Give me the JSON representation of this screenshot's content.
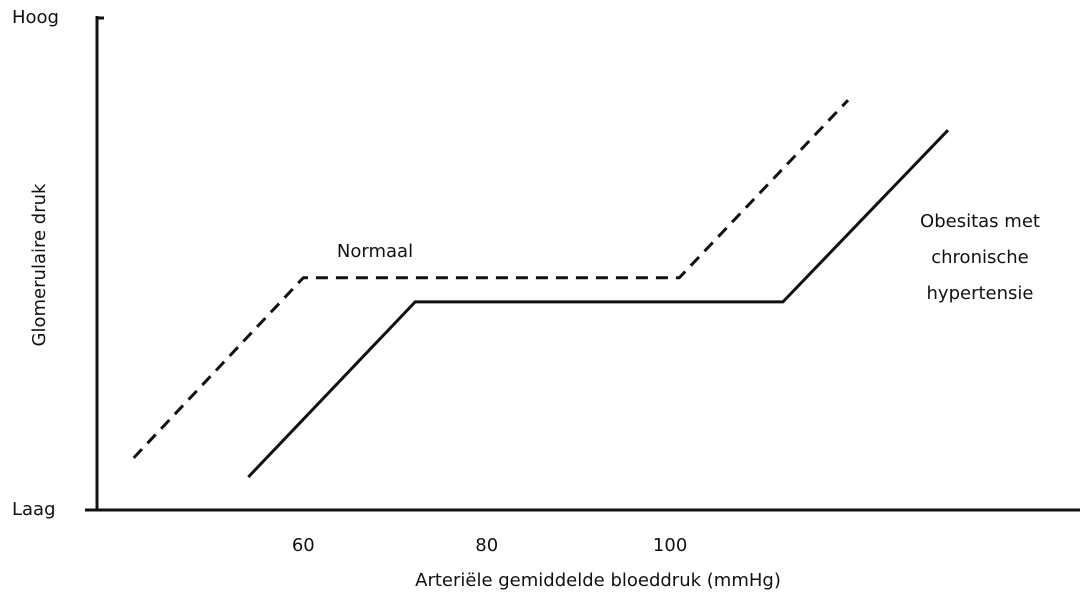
{
  "chart_data": {
    "type": "line",
    "x_label": "Arteriële gemiddelde bloeddruk (mmHg)",
    "y_label": "Glomerulaire druk",
    "xlim": [
      37.5,
      144.7
    ],
    "xticks": [
      60,
      80,
      100
    ],
    "ylim": [
      0,
      100
    ],
    "yticks": [
      {
        "value": 0,
        "label": "Laag"
      },
      {
        "value": 100,
        "label": "Hoog"
      }
    ],
    "grid": false,
    "series": [
      {
        "name": "Normaal",
        "color": "#111111",
        "dashed": true,
        "x": [
          41.5,
          60,
          101,
          119.4
        ],
        "values": [
          10.6,
          47.2,
          47.2,
          83.3
        ]
      },
      {
        "name": "Obesitas met chronische hypertensie",
        "color": "#111111",
        "dashed": false,
        "x": [
          54,
          72.2,
          112.3,
          130.3
        ],
        "values": [
          6.7,
          42.3,
          42.3,
          77.2
        ]
      }
    ]
  }
}
